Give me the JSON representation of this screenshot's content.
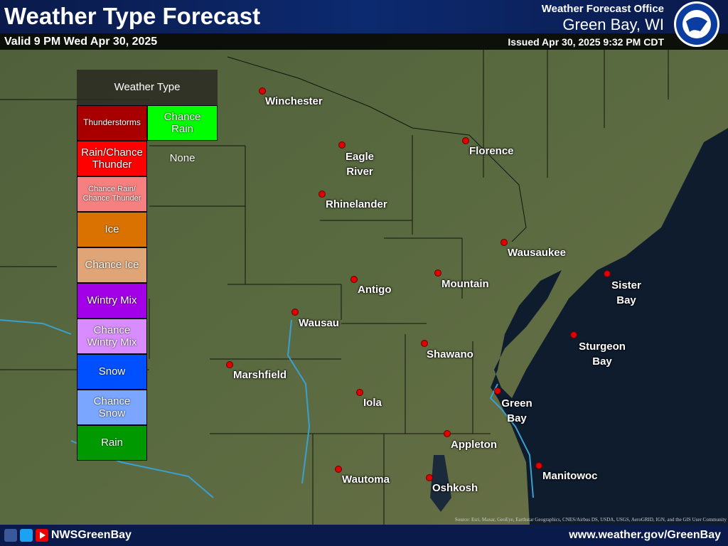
{
  "header": {
    "title": "Weather Type Forecast",
    "valid": "Valid 9 PM Wed Apr 30, 2025",
    "office": "Weather Forecast Office",
    "location": "Green Bay, WI",
    "issued": "Issued Apr 30, 2025 9:32 PM CDT"
  },
  "legend": {
    "title": "Weather Type",
    "items": [
      {
        "label": "Thunderstorms",
        "color": "#a80000"
      },
      {
        "label": "Chance Rain",
        "color": "#00ff00"
      },
      {
        "label": "Rain/Chance Thunder",
        "color": "#ff0000"
      },
      {
        "label": "None",
        "color": "transparent"
      },
      {
        "label": "Chance Rain/ Chance Thunder",
        "color": "#f48080"
      },
      {
        "label": "Ice",
        "color": "#d97200"
      },
      {
        "label": "Chance Ice",
        "color": "#dfa577"
      },
      {
        "label": "Wintry Mix",
        "color": "#a400e8"
      },
      {
        "label": "Chance Wintry Mix",
        "color": "#d98cff"
      },
      {
        "label": "Snow",
        "color": "#0050ff"
      },
      {
        "label": "Chance Snow",
        "color": "#7aa6ff"
      },
      {
        "label": "Rain",
        "color": "#009a00"
      }
    ]
  },
  "cities": [
    "Winchester",
    "Eagle River",
    "Florence",
    "Rhinelander",
    "Wausaukee",
    "Sister Bay",
    "Antigo",
    "Mountain",
    "Wausau",
    "Sturgeon Bay",
    "Shawano",
    "Marshfield",
    "Iola",
    "Green Bay",
    "Appleton",
    "Wautoma",
    "Oshkosh",
    "Manitowoc"
  ],
  "attribution": "Source: Esri, Maxar, GeoEye, Earthstar Geographics, CNES/Airbus DS, USDA, USGS, AeroGRID, IGN, and the GIS User Community",
  "footer": {
    "social": "NWSGreenBay",
    "url": "www.weather.gov/GreenBay"
  }
}
